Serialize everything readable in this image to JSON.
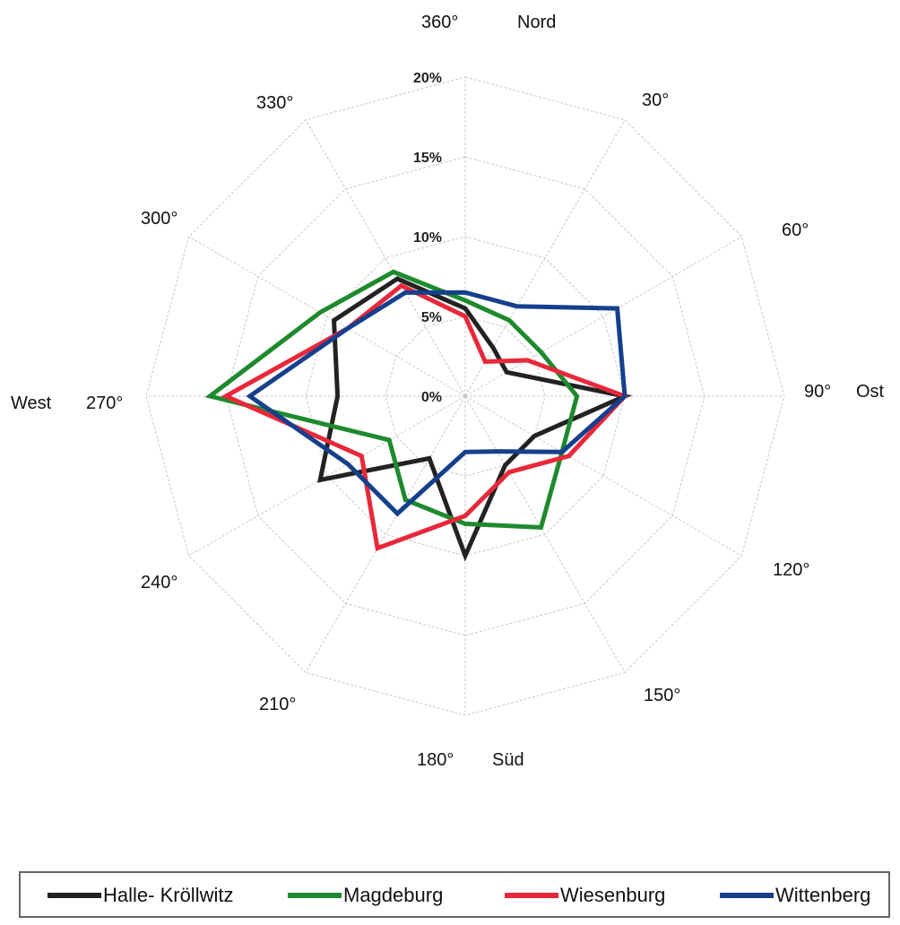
{
  "chart_data": {
    "type": "radar",
    "title": "",
    "angles": [
      "360°",
      "30°",
      "60°",
      "90°",
      "120°",
      "150°",
      "180°",
      "210°",
      "240°",
      "270°",
      "300°",
      "330°"
    ],
    "cardinal_labels": {
      "north": "Nord",
      "east": "Ost",
      "south": "Süd",
      "west": "West"
    },
    "radial_ticks": [
      "0%",
      "5%",
      "10%",
      "15%",
      "20%"
    ],
    "rlim": [
      0,
      20
    ],
    "grid": true,
    "legend_position": "bottom",
    "series": [
      {
        "name": "Halle- Kröllwitz",
        "color": "#222222",
        "values": [
          5.5,
          3.5,
          3.0,
          10.0,
          5.0,
          5.0,
          10.0,
          4.5,
          10.5,
          8.0,
          9.5,
          8.5
        ]
      },
      {
        "name": "Magdeburg",
        "color": "#1e8a2e",
        "values": [
          6.0,
          5.5,
          5.5,
          7.0,
          7.0,
          9.5,
          8.0,
          7.5,
          5.5,
          16.0,
          10.5,
          9.0
        ]
      },
      {
        "name": "Wiesenburg",
        "color": "#e8283a",
        "values": [
          5.0,
          2.5,
          4.5,
          10.0,
          7.5,
          5.5,
          7.5,
          11.0,
          7.5,
          15.0,
          8.5,
          8.0
        ]
      },
      {
        "name": "Wittenberg",
        "color": "#163f8c",
        "values": [
          6.5,
          6.5,
          11.0,
          10.0,
          7.0,
          4.0,
          3.5,
          8.5,
          8.5,
          13.5,
          8.5,
          7.5
        ]
      }
    ]
  },
  "legend": {
    "items": [
      {
        "label": "Halle- Kröllwitz",
        "color": "#222222"
      },
      {
        "label": "Magdeburg",
        "color": "#1e8a2e"
      },
      {
        "label": "Wiesenburg",
        "color": "#e8283a"
      },
      {
        "label": "Wittenberg",
        "color": "#163f8c"
      }
    ]
  }
}
